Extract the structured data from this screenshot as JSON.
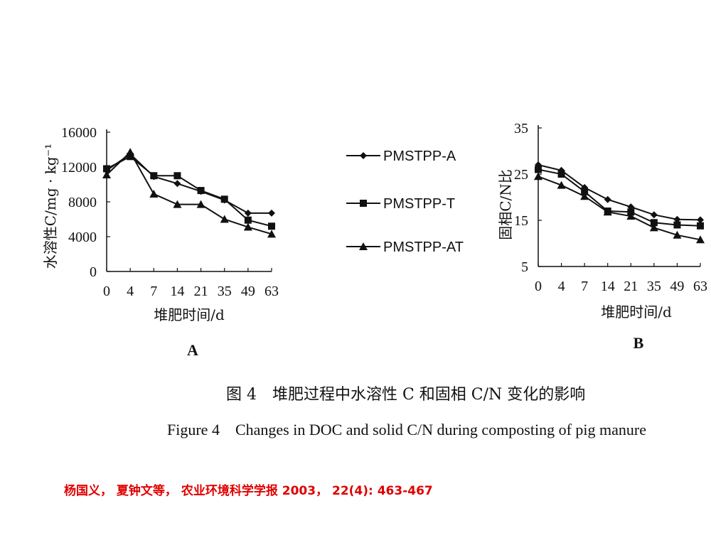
{
  "figure": {
    "caption_cn": "图 4　堆肥过程中水溶性 C 和固相 C/N 变化的影响",
    "caption_en": "Figure 4　Changes in DOC and solid C/N during composting of pig manure"
  },
  "citation": "杨国义， 夏钟文等， 农业环境科学学报  2003，  22(4): 463-467",
  "legend": [
    "PMSTPP-A",
    "PMSTPP-T",
    "PMSTPP-AT"
  ],
  "chart_data": [
    {
      "type": "line",
      "panel_label": "A",
      "xlabel": "堆肥时间/d",
      "ylabel": "水溶性C/mg · kg⁻¹",
      "categories": [
        "0",
        "4",
        "7",
        "14",
        "21",
        "35",
        "49",
        "63"
      ],
      "ylim": [
        0,
        16000
      ],
      "yticks": [
        "0",
        "4000",
        "8000",
        "12000",
        "16000"
      ],
      "series": [
        {
          "name": "PMSTPP-A",
          "marker": "diamond",
          "values": [
            11600,
            13500,
            10900,
            10100,
            9200,
            8200,
            6700,
            6700
          ]
        },
        {
          "name": "PMSTPP-T",
          "marker": "square",
          "values": [
            11800,
            13200,
            11000,
            11000,
            9300,
            8300,
            5900,
            5200
          ]
        },
        {
          "name": "PMSTPP-AT",
          "marker": "triangle",
          "values": [
            11100,
            13700,
            8900,
            7700,
            7700,
            6000,
            5100,
            4300
          ]
        }
      ]
    },
    {
      "type": "line",
      "panel_label": "B",
      "xlabel": "堆肥时间/d",
      "ylabel": "固相C/N比",
      "categories": [
        "0",
        "4",
        "7",
        "14",
        "21",
        "35",
        "49",
        "63"
      ],
      "ylim": [
        5,
        35
      ],
      "yticks": [
        "5",
        "15",
        "25",
        "35"
      ],
      "series": [
        {
          "name": "PMSTPP-A",
          "marker": "diamond",
          "values": [
            27.0,
            25.8,
            22.1,
            19.5,
            17.9,
            16.2,
            15.2,
            15.1
          ]
        },
        {
          "name": "PMSTPP-T",
          "marker": "square",
          "values": [
            26.0,
            25.0,
            21.2,
            17.0,
            16.8,
            14.5,
            14.0,
            13.8
          ]
        },
        {
          "name": "PMSTPP-AT",
          "marker": "triangle",
          "values": [
            24.5,
            22.6,
            20.2,
            16.8,
            15.9,
            13.4,
            11.8,
            10.8
          ]
        }
      ]
    }
  ]
}
